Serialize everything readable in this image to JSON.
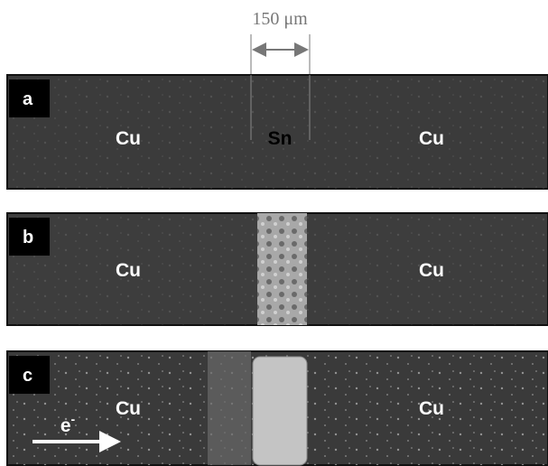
{
  "scale_bar": {
    "label": "150 μm"
  },
  "panels": [
    {
      "label": "a",
      "left": "Cu",
      "center": "Sn",
      "right": "Cu"
    },
    {
      "label": "b",
      "left": "Cu",
      "right": "Cu"
    },
    {
      "label": "c",
      "left": "Cu",
      "right": "Cu"
    }
  ],
  "electron": {
    "symbol": "e",
    "charge": "-"
  }
}
